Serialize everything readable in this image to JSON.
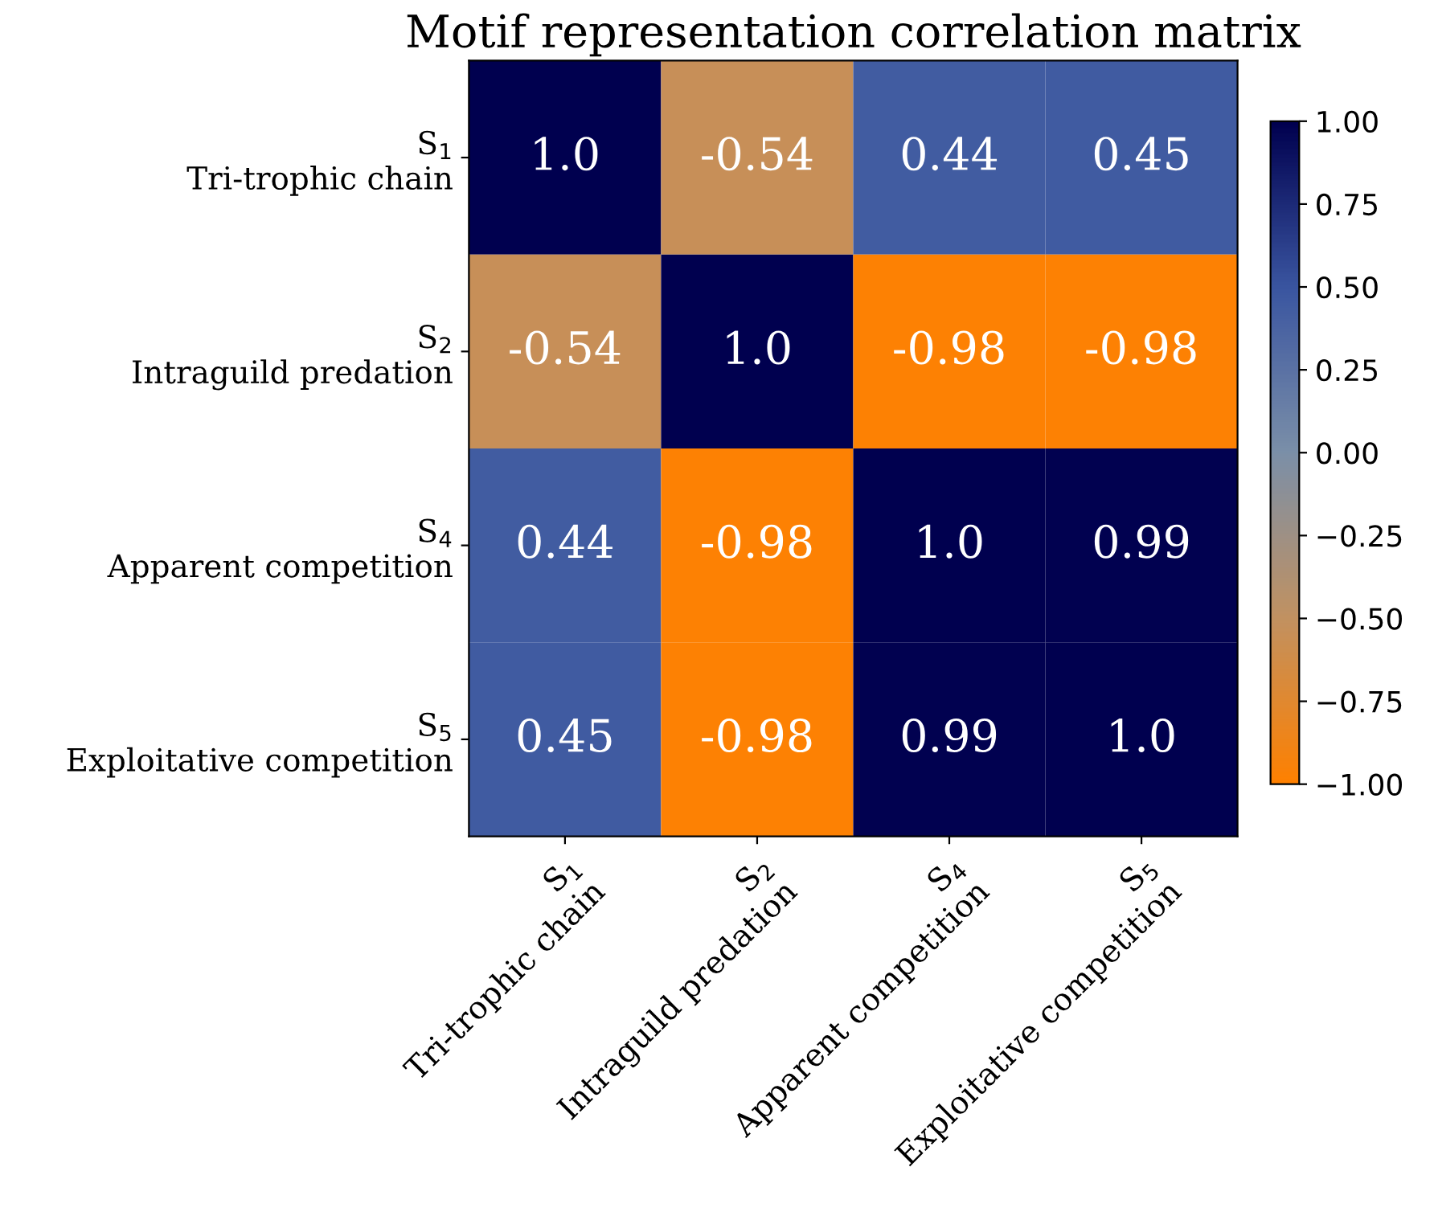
{
  "chart_data": {
    "type": "heatmap",
    "title": "Motif representation correlation matrix",
    "categories": [
      "S$_{1}$\nTri-trophic chain",
      "S$_{2}$\nIntraguild predation",
      "S$_{4}$\nApparent competition",
      "S$_{5}$\nExploitative competition"
    ],
    "y_categories": [
      "S$_{1}$\nTri-trophic chain",
      "S$_{2}$\nIntraguild predation",
      "S$_{4}$\nApparent competition",
      "S$_{5}$\nExploitative competition"
    ],
    "cells": [
      [
        1.0,
        -0.54,
        0.44,
        0.45
      ],
      [
        -0.54,
        1.0,
        -0.98,
        -0.98
      ],
      [
        0.44,
        -0.98,
        1.0,
        0.99
      ],
      [
        0.45,
        -0.98,
        0.99,
        1.0
      ]
    ],
    "cell_labels": [
      [
        "1.0",
        "-0.54",
        "0.44",
        "0.45"
      ],
      [
        "-0.54",
        "1.0",
        "-0.98",
        "-0.98"
      ],
      [
        "0.44",
        "-0.98",
        "1.0",
        "0.99"
      ],
      [
        "0.45",
        "-0.98",
        "0.99",
        "1.0"
      ]
    ],
    "clim": [
      -1,
      1
    ],
    "cticks": [
      {
        "value": -1,
        "label": "−1.00"
      },
      {
        "value": -0.75,
        "label": "−0.75"
      },
      {
        "value": -0.5,
        "label": "−0.50"
      },
      {
        "value": -0.25,
        "label": "−0.25"
      },
      {
        "value": 0,
        "label": "0.00"
      },
      {
        "value": 0.25,
        "label": "0.25"
      },
      {
        "value": 0.5,
        "label": "0.50"
      },
      {
        "value": 0.75,
        "label": "0.75"
      },
      {
        "value": 1,
        "label": "1.00"
      }
    ]
  }
}
